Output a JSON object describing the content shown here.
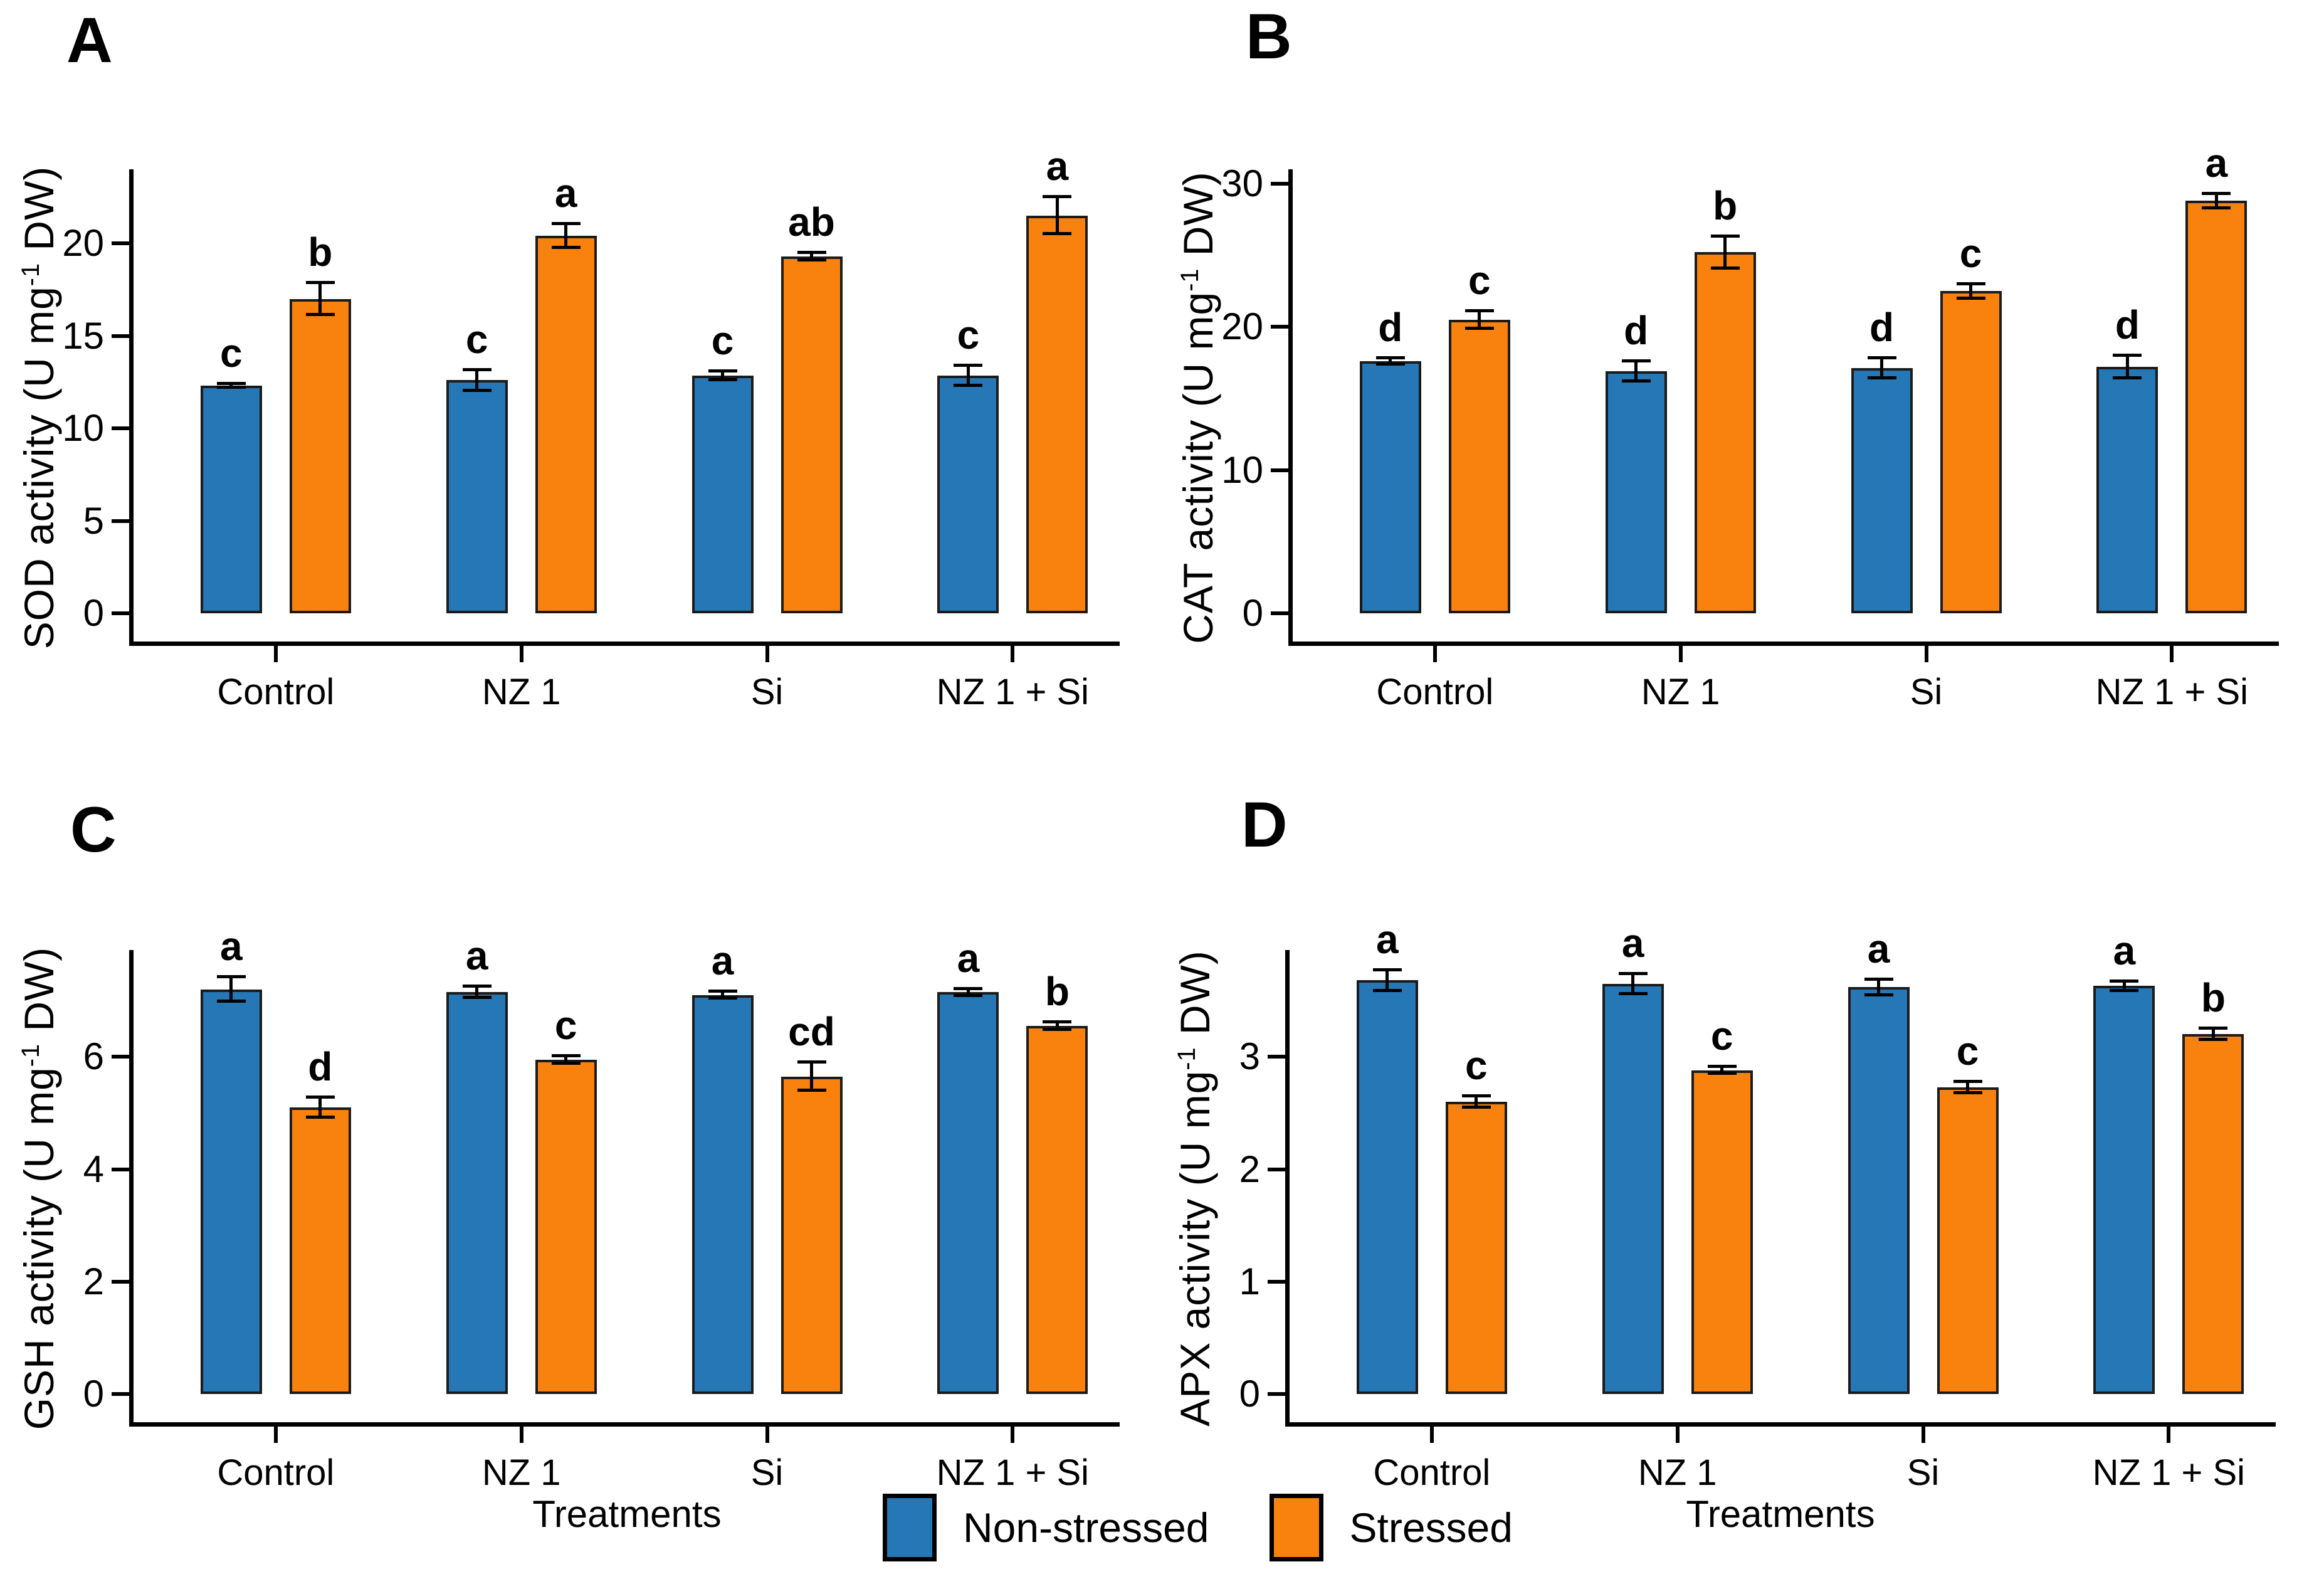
{
  "figure": {
    "background": "#ffffff",
    "bar_edge_color": "#1b1b1b",
    "axis_color": "#000000"
  },
  "legend": {
    "items": [
      {
        "label": "Non-stressed",
        "color": "#2577B5"
      },
      {
        "label": "Stressed",
        "color": "#F8820D"
      }
    ]
  },
  "chart_data": [
    {
      "type": "bar",
      "panel": "A",
      "title": "",
      "ylabel": "SOD activity (U mg-1 DW)",
      "ylabel_parts": {
        "pre": "SOD activity (U mg",
        "sup": "-1",
        "post": " DW)"
      },
      "xlabel": "",
      "categories": [
        "Control",
        "NZ 1",
        "Si",
        "NZ 1 + Si"
      ],
      "yticks": [
        0,
        5,
        10,
        15,
        20
      ],
      "ylim": [
        0,
        24
      ],
      "grid": false,
      "series": [
        {
          "name": "Non-stressed",
          "color": "#2577B5",
          "values": [
            12.3,
            12.6,
            12.85,
            12.85
          ],
          "errors": [
            0.1,
            0.55,
            0.25,
            0.55
          ],
          "letters": [
            "c",
            "c",
            "c",
            "c"
          ]
        },
        {
          "name": "Stressed",
          "color": "#F8820D",
          "values": [
            17.0,
            20.4,
            19.3,
            21.5
          ],
          "errors": [
            0.85,
            0.65,
            0.2,
            1.0
          ],
          "letters": [
            "b",
            "a",
            "ab",
            "a"
          ]
        }
      ]
    },
    {
      "type": "bar",
      "panel": "B",
      "title": "",
      "ylabel": "CAT activity (U mg-1 DW)",
      "ylabel_parts": {
        "pre": "CAT activity (U mg",
        "sup": "-1",
        "post": " DW)"
      },
      "xlabel": "",
      "categories": [
        "Control",
        "NZ 1",
        "Si",
        "NZ 1 + Si"
      ],
      "yticks": [
        0,
        10,
        20,
        30
      ],
      "ylim": [
        0,
        31
      ],
      "grid": false,
      "series": [
        {
          "name": "Non-stressed",
          "color": "#2577B5",
          "values": [
            17.6,
            16.9,
            17.1,
            17.2
          ],
          "errors": [
            0.2,
            0.7,
            0.7,
            0.8
          ],
          "letters": [
            "d",
            "d",
            "d",
            "d"
          ]
        },
        {
          "name": "Stressed",
          "color": "#F8820D",
          "values": [
            20.5,
            25.2,
            22.5,
            28.8
          ],
          "errors": [
            0.6,
            1.1,
            0.5,
            0.5
          ],
          "letters": [
            "c",
            "b",
            "c",
            "a"
          ]
        }
      ]
    },
    {
      "type": "bar",
      "panel": "C",
      "title": "",
      "ylabel": "GSH activity (U mg-1 DW)",
      "ylabel_parts": {
        "pre": "GSH activity (U mg",
        "sup": "-1",
        "post": " DW)"
      },
      "xlabel": "Treatments",
      "categories": [
        "Control",
        "NZ 1",
        "Si",
        "NZ 1 + Si"
      ],
      "yticks": [
        0,
        2,
        4,
        6
      ],
      "ylim": [
        0,
        7.9
      ],
      "grid": false,
      "series": [
        {
          "name": "Non-stressed",
          "color": "#2577B5",
          "values": [
            7.2,
            7.15,
            7.1,
            7.15
          ],
          "errors": [
            0.22,
            0.1,
            0.06,
            0.06
          ],
          "letters": [
            "a",
            "a",
            "a",
            "a"
          ]
        },
        {
          "name": "Stressed",
          "color": "#F8820D",
          "values": [
            5.1,
            5.95,
            5.65,
            6.55
          ],
          "errors": [
            0.18,
            0.07,
            0.25,
            0.07
          ],
          "letters": [
            "d",
            "c",
            "cd",
            "b"
          ]
        }
      ]
    },
    {
      "type": "bar",
      "panel": "D",
      "title": "",
      "ylabel": "APX activity (U mg-1 DW)",
      "ylabel_parts": {
        "pre": "APX activity (U mg",
        "sup": "-1",
        "post": " DW)"
      },
      "xlabel": "Treatments",
      "categories": [
        "Control",
        "NZ 1",
        "Si",
        "NZ 1 + Si"
      ],
      "yticks": [
        0,
        1,
        2,
        3
      ],
      "ylim": [
        0,
        3.95
      ],
      "grid": false,
      "series": [
        {
          "name": "Non-stressed",
          "color": "#2577B5",
          "values": [
            3.68,
            3.65,
            3.62,
            3.63
          ],
          "errors": [
            0.09,
            0.09,
            0.07,
            0.04
          ],
          "letters": [
            "a",
            "a",
            "a",
            "a"
          ]
        },
        {
          "name": "Stressed",
          "color": "#F8820D",
          "values": [
            2.6,
            2.88,
            2.73,
            3.2
          ],
          "errors": [
            0.05,
            0.03,
            0.05,
            0.05
          ],
          "letters": [
            "c",
            "c",
            "c",
            "b"
          ]
        }
      ]
    }
  ]
}
